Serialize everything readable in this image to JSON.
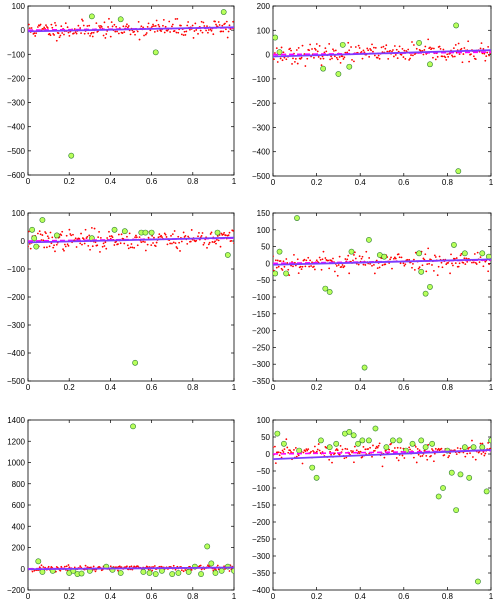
{
  "colors": {
    "points": "#ff0000",
    "outlier_fill": "#b8ff5a",
    "outlier_ring": "#2e7d32",
    "fit_line": "#7a3cff",
    "true_line": "#ff00ff",
    "axes": "#000000"
  },
  "chart_data": [
    {
      "type": "scatter",
      "xlim": [
        0,
        1
      ],
      "ylim": [
        -600,
        100
      ],
      "xticks": [
        0,
        0.2,
        0.4,
        0.6,
        0.8,
        1
      ],
      "yticks": [
        100,
        0,
        -100,
        -200,
        -300,
        -400,
        -500,
        -600
      ],
      "xtick_labels": [
        "0",
        "0.2",
        "0.4",
        "0.6",
        "0.8",
        "1"
      ],
      "ytick_labels": [
        "100",
        "0",
        "−100",
        "−200",
        "−300",
        "−400",
        "−500",
        "−600"
      ],
      "noise": 18,
      "seed": 11,
      "true_line": [
        [
          0,
          0
        ],
        [
          1,
          10
        ]
      ],
      "fit_line": [
        [
          0,
          -5
        ],
        [
          1,
          12
        ]
      ],
      "outliers": [
        [
          0.21,
          -520
        ],
        [
          0.31,
          57
        ],
        [
          0.45,
          45
        ],
        [
          0.62,
          -92
        ],
        [
          0.95,
          75
        ]
      ]
    },
    {
      "type": "scatter",
      "xlim": [
        0,
        1
      ],
      "ylim": [
        -500,
        200
      ],
      "xticks": [
        0,
        0.2,
        0.4,
        0.6,
        0.8,
        1
      ],
      "yticks": [
        200,
        100,
        0,
        -100,
        -200,
        -300,
        -400,
        -500
      ],
      "xtick_labels": [
        "0",
        "0.2",
        "0.4",
        "0.6",
        "0.8",
        "1"
      ],
      "ytick_labels": [
        "200",
        "100",
        "0",
        "−100",
        "−200",
        "−300",
        "−400",
        "−500"
      ],
      "noise": 18,
      "seed": 23,
      "true_line": [
        [
          0,
          0
        ],
        [
          1,
          10
        ]
      ],
      "fit_line": [
        [
          0,
          -8
        ],
        [
          1,
          18
        ]
      ],
      "outliers": [
        [
          0.01,
          70
        ],
        [
          0.03,
          10
        ],
        [
          0.23,
          -58
        ],
        [
          0.3,
          -80
        ],
        [
          0.32,
          40
        ],
        [
          0.35,
          -50
        ],
        [
          0.67,
          48
        ],
        [
          0.72,
          -40
        ],
        [
          0.84,
          120
        ],
        [
          0.85,
          -480
        ]
      ]
    },
    {
      "type": "scatter",
      "xlim": [
        0,
        1
      ],
      "ylim": [
        -500,
        100
      ],
      "xticks": [
        0,
        0.2,
        0.4,
        0.6,
        0.8,
        1
      ],
      "yticks": [
        100,
        0,
        -100,
        -200,
        -300,
        -400,
        -500
      ],
      "xtick_labels": [
        "0",
        "0.2",
        "0.4",
        "0.6",
        "0.8",
        "1"
      ],
      "ytick_labels": [
        "100",
        "0",
        "−100",
        "−200",
        "−300",
        "−400",
        "−500"
      ],
      "noise": 18,
      "seed": 37,
      "true_line": [
        [
          0,
          0
        ],
        [
          1,
          10
        ]
      ],
      "fit_line": [
        [
          0,
          -5
        ],
        [
          1,
          12
        ]
      ],
      "outliers": [
        [
          0.02,
          40
        ],
        [
          0.03,
          10
        ],
        [
          0.04,
          -20
        ],
        [
          0.07,
          75
        ],
        [
          0.14,
          20
        ],
        [
          0.31,
          10
        ],
        [
          0.42,
          40
        ],
        [
          0.47,
          35
        ],
        [
          0.52,
          -435
        ],
        [
          0.55,
          30
        ],
        [
          0.57,
          30
        ],
        [
          0.6,
          30
        ],
        [
          0.92,
          30
        ],
        [
          0.97,
          -50
        ]
      ]
    },
    {
      "type": "scatter",
      "xlim": [
        0,
        1
      ],
      "ylim": [
        -350,
        150
      ],
      "xticks": [
        0,
        0.2,
        0.4,
        0.6,
        0.8,
        1
      ],
      "yticks": [
        150,
        100,
        50,
        0,
        -50,
        -100,
        -150,
        -200,
        -250,
        -300,
        -350
      ],
      "xtick_labels": [
        "0",
        "0.2",
        "0.4",
        "0.6",
        "0.8",
        "1"
      ],
      "ytick_labels": [
        "150",
        "100",
        "50",
        "0",
        "−50",
        "−100",
        "−150",
        "−200",
        "−250",
        "−300",
        "−350"
      ],
      "noise": 15,
      "seed": 53,
      "true_line": [
        [
          0,
          0
        ],
        [
          1,
          10
        ]
      ],
      "fit_line": [
        [
          0,
          -4
        ],
        [
          1,
          12
        ]
      ],
      "outliers": [
        [
          0.01,
          -30
        ],
        [
          0.03,
          35
        ],
        [
          0.06,
          -30
        ],
        [
          0.11,
          135
        ],
        [
          0.24,
          -75
        ],
        [
          0.26,
          -85
        ],
        [
          0.36,
          35
        ],
        [
          0.42,
          -310
        ],
        [
          0.44,
          70
        ],
        [
          0.49,
          25
        ],
        [
          0.51,
          20
        ],
        [
          0.67,
          30
        ],
        [
          0.68,
          -25
        ],
        [
          0.7,
          -90
        ],
        [
          0.72,
          -70
        ],
        [
          0.83,
          55
        ],
        [
          0.88,
          30
        ],
        [
          0.96,
          30
        ],
        [
          0.99,
          20
        ]
      ]
    },
    {
      "type": "scatter",
      "xlim": [
        0,
        1
      ],
      "ylim": [
        -200,
        1400
      ],
      "xticks": [
        0,
        0.2,
        0.4,
        0.6,
        0.8,
        1
      ],
      "yticks": [
        1400,
        1200,
        1000,
        800,
        600,
        400,
        200,
        0,
        -200
      ],
      "xtick_labels": [
        "0",
        "0.2",
        "0.4",
        "0.6",
        "0.8",
        "1"
      ],
      "ytick_labels": [
        "1400",
        "1200",
        "1000",
        "800",
        "600",
        "400",
        "200",
        "0",
        "−200"
      ],
      "noise": 14,
      "seed": 71,
      "true_line": [
        [
          0,
          0
        ],
        [
          1,
          10
        ]
      ],
      "fit_line": [
        [
          0,
          -5
        ],
        [
          1,
          12
        ]
      ],
      "outliers": [
        [
          0.05,
          70
        ],
        [
          0.07,
          -30
        ],
        [
          0.12,
          -20
        ],
        [
          0.2,
          -40
        ],
        [
          0.22,
          -20
        ],
        [
          0.24,
          -50
        ],
        [
          0.26,
          -45
        ],
        [
          0.3,
          -20
        ],
        [
          0.38,
          20
        ],
        [
          0.41,
          -10
        ],
        [
          0.45,
          -40
        ],
        [
          0.51,
          1340
        ],
        [
          0.56,
          -30
        ],
        [
          0.59,
          -40
        ],
        [
          0.62,
          -50
        ],
        [
          0.65,
          -20
        ],
        [
          0.7,
          -50
        ],
        [
          0.73,
          -40
        ],
        [
          0.78,
          -30
        ],
        [
          0.81,
          20
        ],
        [
          0.84,
          -50
        ],
        [
          0.87,
          210
        ],
        [
          0.89,
          50
        ],
        [
          0.91,
          -40
        ],
        [
          0.94,
          -20
        ],
        [
          0.97,
          20
        ],
        [
          1.0,
          -20
        ]
      ]
    },
    {
      "type": "scatter",
      "xlim": [
        0,
        1
      ],
      "ylim": [
        -400,
        100
      ],
      "xticks": [
        0,
        0.2,
        0.4,
        0.6,
        0.8,
        1
      ],
      "yticks": [
        100,
        50,
        0,
        -50,
        -100,
        -150,
        -200,
        -250,
        -300,
        -350,
        -400
      ],
      "xtick_labels": [
        "0",
        "0.2",
        "0.4",
        "0.6",
        "0.8",
        "1"
      ],
      "ytick_labels": [
        "100",
        "50",
        "0",
        "−50",
        "−100",
        "−150",
        "−200",
        "−250",
        "−300",
        "−350",
        "−400"
      ],
      "noise": 14,
      "seed": 97,
      "true_line": [
        [
          0,
          0
        ],
        [
          1,
          10
        ]
      ],
      "fit_line": [
        [
          0,
          -15
        ],
        [
          1,
          12
        ]
      ],
      "outliers": [
        [
          0.02,
          60
        ],
        [
          0.05,
          30
        ],
        [
          0.12,
          10
        ],
        [
          0.18,
          -40
        ],
        [
          0.2,
          -70
        ],
        [
          0.22,
          40
        ],
        [
          0.26,
          20
        ],
        [
          0.29,
          30
        ],
        [
          0.33,
          60
        ],
        [
          0.35,
          65
        ],
        [
          0.37,
          55
        ],
        [
          0.39,
          30
        ],
        [
          0.41,
          40
        ],
        [
          0.44,
          40
        ],
        [
          0.47,
          75
        ],
        [
          0.52,
          20
        ],
        [
          0.55,
          40
        ],
        [
          0.58,
          40
        ],
        [
          0.61,
          10
        ],
        [
          0.64,
          30
        ],
        [
          0.68,
          40
        ],
        [
          0.7,
          20
        ],
        [
          0.73,
          30
        ],
        [
          0.76,
          -125
        ],
        [
          0.78,
          -100
        ],
        [
          0.8,
          10
        ],
        [
          0.82,
          -55
        ],
        [
          0.84,
          -165
        ],
        [
          0.86,
          -60
        ],
        [
          0.88,
          20
        ],
        [
          0.9,
          -70
        ],
        [
          0.92,
          20
        ],
        [
          0.94,
          -375
        ],
        [
          0.96,
          20
        ],
        [
          0.98,
          -110
        ],
        [
          1.0,
          40
        ]
      ]
    }
  ]
}
